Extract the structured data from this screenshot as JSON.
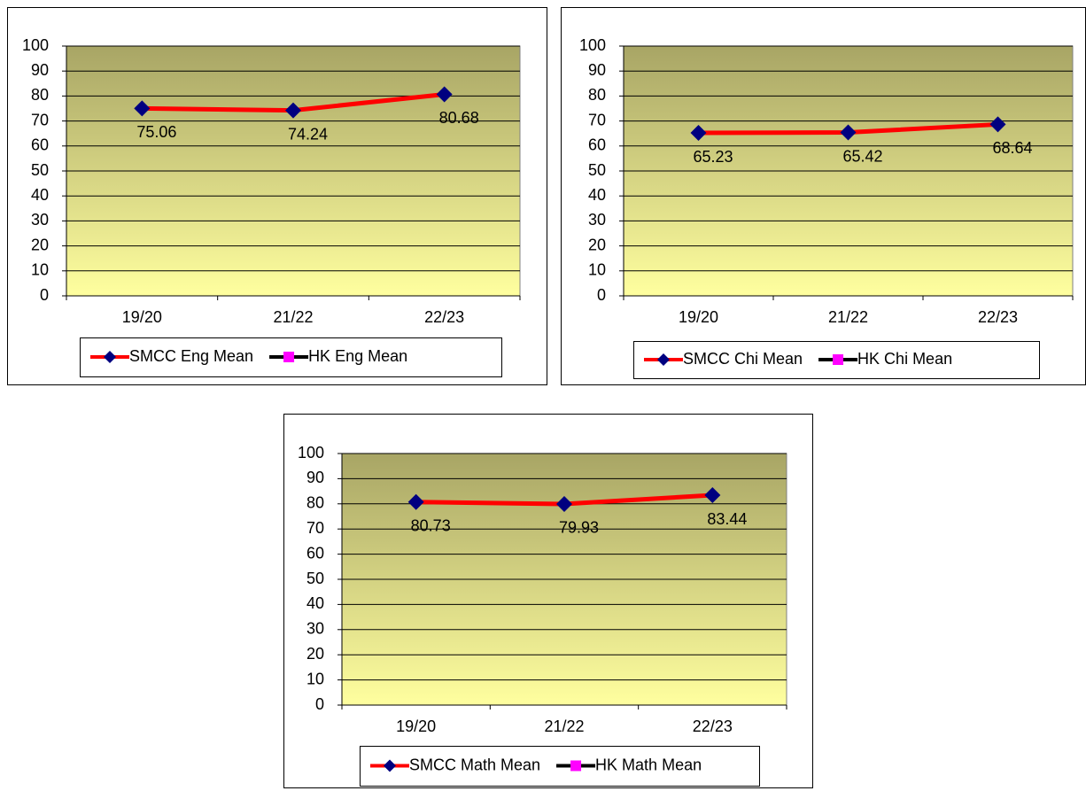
{
  "chart_data": [
    {
      "type": "line",
      "categories": [
        "19/20",
        "21/22",
        "22/23"
      ],
      "series": [
        {
          "name": "SMCC Eng Mean",
          "color": "#ff0000",
          "marker_color": "#000080",
          "values": [
            75.06,
            74.24,
            80.68
          ]
        },
        {
          "name": "HK Eng Mean",
          "color": "#000000",
          "marker_color": "#ff00ff",
          "values": [
            null,
            null,
            null
          ]
        }
      ],
      "ylim": [
        0,
        100
      ],
      "yticks": [
        0,
        10,
        20,
        30,
        40,
        50,
        60,
        70,
        80,
        90,
        100
      ],
      "grid": true
    },
    {
      "type": "line",
      "categories": [
        "19/20",
        "21/22",
        "22/23"
      ],
      "series": [
        {
          "name": "SMCC Chi Mean",
          "color": "#ff0000",
          "marker_color": "#000080",
          "values": [
            65.23,
            65.42,
            68.64
          ]
        },
        {
          "name": "HK Chi Mean",
          "color": "#000000",
          "marker_color": "#ff00ff",
          "values": [
            null,
            null,
            null
          ]
        }
      ],
      "ylim": [
        0,
        100
      ],
      "yticks": [
        0,
        10,
        20,
        30,
        40,
        50,
        60,
        70,
        80,
        90,
        100
      ],
      "grid": true
    },
    {
      "type": "line",
      "categories": [
        "19/20",
        "21/22",
        "22/23"
      ],
      "series": [
        {
          "name": "SMCC Math Mean",
          "color": "#ff0000",
          "marker_color": "#000080",
          "values": [
            80.73,
            79.93,
            83.44
          ]
        },
        {
          "name": "HK Math Mean",
          "color": "#000000",
          "marker_color": "#ff00ff",
          "values": [
            null,
            null,
            null
          ]
        }
      ],
      "ylim": [
        0,
        100
      ],
      "yticks": [
        0,
        10,
        20,
        30,
        40,
        50,
        60,
        70,
        80,
        90,
        100
      ],
      "grid": true
    }
  ]
}
